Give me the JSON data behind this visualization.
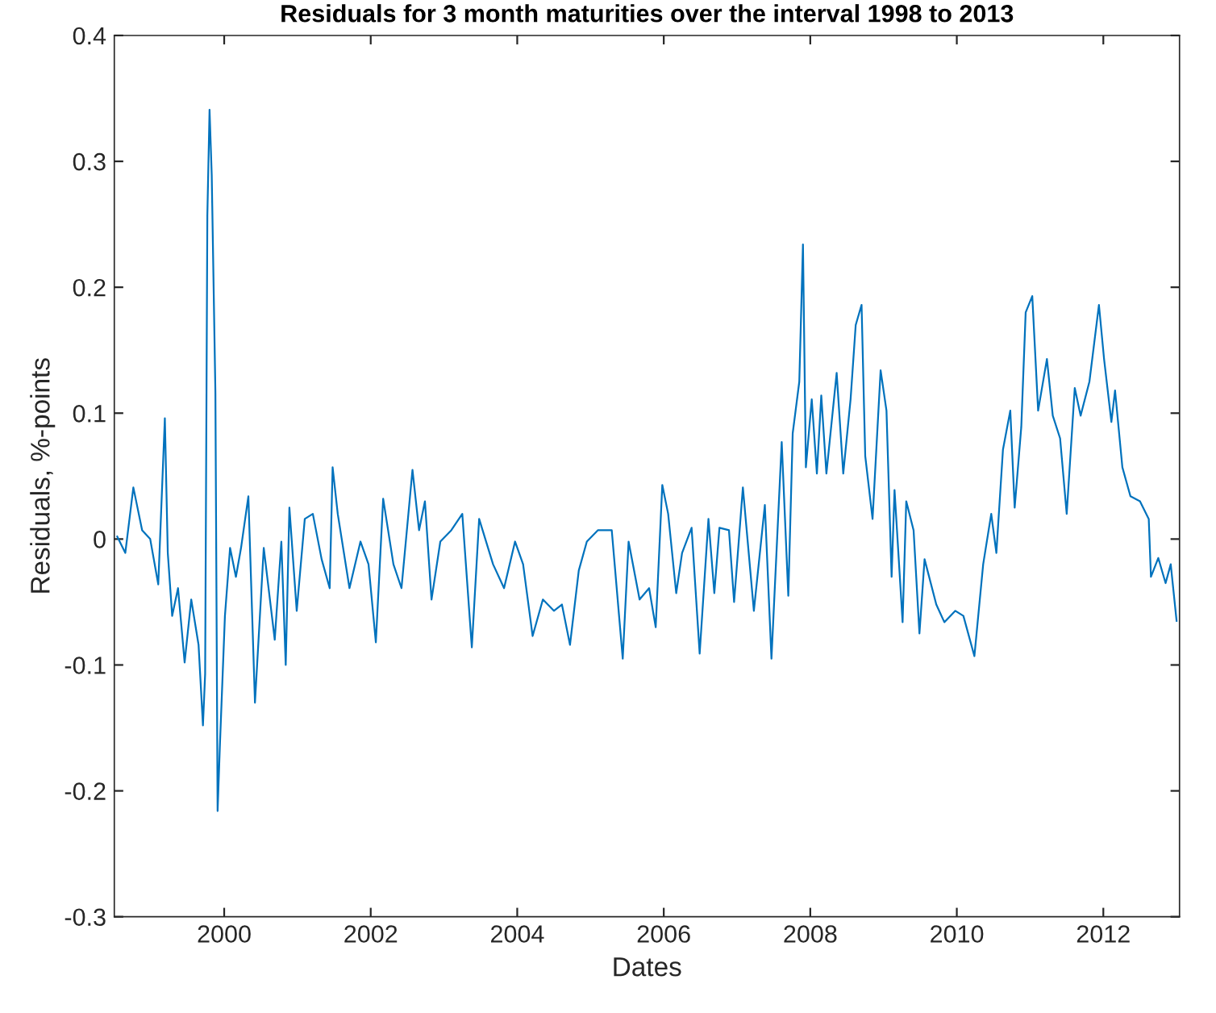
{
  "chart_data": {
    "type": "line",
    "title": "Residuals for 3 month maturities over the interval 1998 to 2013",
    "xlabel": "Dates",
    "ylabel": "Residuals, %-points",
    "xlim": [
      1998.5,
      2013.04
    ],
    "xticks": [
      2000,
      2002,
      2004,
      2006,
      2008,
      2010,
      2012
    ],
    "ylim": [
      -0.3,
      0.4
    ],
    "yticks": [
      -0.3,
      -0.2,
      -0.1,
      0,
      0.1,
      0.2,
      0.3,
      0.4
    ],
    "grid": false,
    "legend": false,
    "marker": "none",
    "line_style": "solid",
    "series": [
      {
        "color": "#0072bd",
        "x": [
          1998.54,
          1998.65,
          1998.76,
          1998.88,
          1998.99,
          1999.1,
          1999.19,
          1999.23,
          1999.29,
          1999.37,
          1999.46,
          1999.55,
          1999.65,
          1999.71,
          1999.74,
          1999.77,
          1999.8,
          1999.83,
          1999.88,
          1999.91,
          1999.94,
          2000.01,
          2000.08,
          2000.16,
          2000.23,
          2000.33,
          2000.42,
          2000.54,
          2000.69,
          2000.78,
          2000.84,
          2000.89,
          2000.99,
          2001.1,
          2001.21,
          2001.33,
          2001.44,
          2001.48,
          2001.55,
          2001.71,
          2001.86,
          2001.97,
          2002.07,
          2002.17,
          2002.31,
          2002.42,
          2002.57,
          2002.66,
          2002.74,
          2002.83,
          2002.95,
          2003.1,
          2003.25,
          2003.38,
          2003.48,
          2003.67,
          2003.82,
          2003.97,
          2004.08,
          2004.21,
          2004.35,
          2004.5,
          2004.61,
          2004.72,
          2004.84,
          2004.95,
          2005.1,
          2005.29,
          2005.44,
          2005.52,
          2005.67,
          2005.8,
          2005.89,
          2005.98,
          2006.06,
          2006.17,
          2006.25,
          2006.38,
          2006.49,
          2006.61,
          2006.69,
          2006.76,
          2006.89,
          2006.96,
          2007.08,
          2007.23,
          2007.38,
          2007.47,
          2007.61,
          2007.7,
          2007.76,
          2007.85,
          2007.9,
          2007.94,
          2008.02,
          2008.09,
          2008.15,
          2008.22,
          2008.36,
          2008.45,
          2008.55,
          2008.62,
          2008.7,
          2008.75,
          2008.85,
          2008.96,
          2009.04,
          2009.11,
          2009.15,
          2009.26,
          2009.31,
          2009.41,
          2009.49,
          2009.56,
          2009.72,
          2009.83,
          2009.98,
          2010.09,
          2010.24,
          2010.36,
          2010.47,
          2010.54,
          2010.63,
          2010.73,
          2010.79,
          2010.88,
          2010.94,
          2011.03,
          2011.11,
          2011.23,
          2011.31,
          2011.41,
          2011.5,
          2011.61,
          2011.69,
          2011.81,
          2011.94,
          2012.01,
          2012.11,
          2012.16,
          2012.26,
          2012.37,
          2012.5,
          2012.62,
          2012.65,
          2012.75,
          2012.85,
          2012.92,
          2013.0
        ],
        "values": [
          0.002,
          -0.011,
          0.041,
          0.007,
          0,
          -0.036,
          0.096,
          -0.011,
          -0.061,
          -0.039,
          -0.098,
          -0.048,
          -0.084,
          -0.148,
          -0.107,
          0.257,
          0.341,
          0.289,
          0.116,
          -0.216,
          -0.166,
          -0.061,
          -0.007,
          -0.03,
          -0.007,
          0.034,
          -0.13,
          -0.007,
          -0.08,
          -0.002,
          -0.1,
          0.025,
          -0.057,
          0.016,
          0.02,
          -0.016,
          -0.039,
          0.057,
          0.02,
          -0.039,
          -0.002,
          -0.02,
          -0.082,
          0.032,
          -0.02,
          -0.039,
          0.055,
          0.007,
          0.03,
          -0.048,
          -0.002,
          0.007,
          0.02,
          -0.086,
          0.016,
          -0.02,
          -0.039,
          -0.002,
          -0.02,
          -0.077,
          -0.048,
          -0.057,
          -0.052,
          -0.084,
          -0.025,
          -0.002,
          0.007,
          0.007,
          -0.095,
          -0.002,
          -0.048,
          -0.039,
          -0.07,
          0.043,
          0.02,
          -0.043,
          -0.011,
          0.009,
          -0.091,
          0.016,
          -0.043,
          0.009,
          0.007,
          -0.05,
          0.041,
          -0.057,
          0.027,
          -0.095,
          0.077,
          -0.045,
          0.084,
          0.125,
          0.234,
          0.057,
          0.111,
          0.052,
          0.114,
          0.052,
          0.132,
          0.052,
          0.111,
          0.17,
          0.186,
          0.066,
          0.016,
          0.134,
          0.102,
          -0.03,
          0.039,
          -0.066,
          0.03,
          0.007,
          -0.075,
          -0.016,
          -0.052,
          -0.066,
          -0.057,
          -0.061,
          -0.093,
          -0.02,
          0.02,
          -0.011,
          0.071,
          0.102,
          0.025,
          0.089,
          0.18,
          0.193,
          0.102,
          0.143,
          0.098,
          0.08,
          0.02,
          0.12,
          0.098,
          0.125,
          0.186,
          0.143,
          0.093,
          0.118,
          0.057,
          0.034,
          0.03,
          0.016,
          -0.03,
          -0.015,
          -0.035,
          -0.02,
          -0.065
        ]
      }
    ]
  }
}
